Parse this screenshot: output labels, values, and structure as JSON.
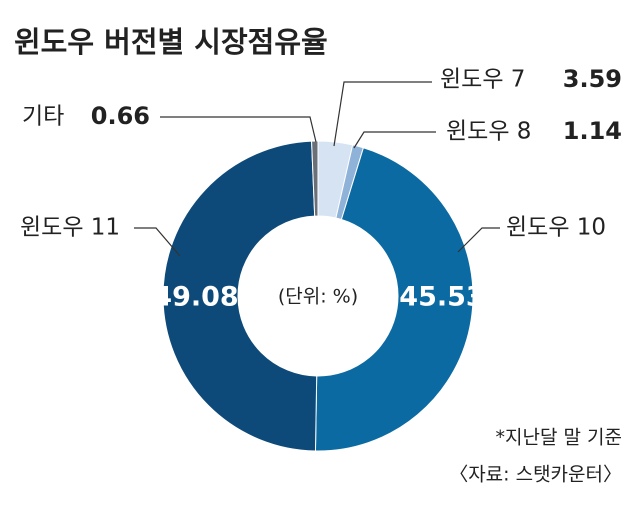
{
  "chart_data": {
    "type": "donut",
    "title": "윈도우 버전별 시장점유율",
    "unit_note": "(단위: %)",
    "notes": [
      "*지난달 말 기준",
      "〈자료: 스탯카운터〉"
    ],
    "categories": [
      "윈도우 7",
      "윈도우 8",
      "윈도우 10",
      "윈도우 11",
      "기타"
    ],
    "values": [
      3.59,
      1.14,
      45.53,
      49.08,
      0.66
    ],
    "colors": [
      "#d5e3f3",
      "#8fb2d8",
      "#0b6aa2",
      "#0e4a79",
      "#6b7078"
    ]
  }
}
